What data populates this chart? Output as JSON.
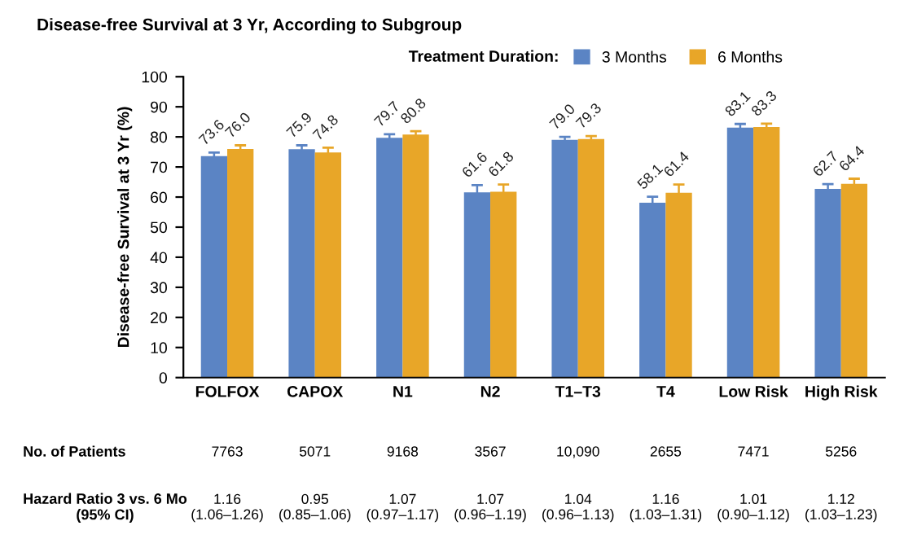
{
  "chart_data": {
    "type": "bar",
    "title": "Disease-free Survival at 3 Yr, According to Subgroup",
    "ylabel": "Disease-free Survival at 3 Yr (%)",
    "legend_title": "Treatment Duration:",
    "legend": "top right",
    "categories": [
      "FOLFOX",
      "CAPOX",
      "N1",
      "N2",
      "T1–T3",
      "T4",
      "Low Risk",
      "High Risk"
    ],
    "series": [
      {
        "name": "3 Months",
        "color": "#5b84c4",
        "values": [
          73.6,
          75.9,
          79.7,
          61.6,
          79.0,
          58.1,
          83.1,
          62.7
        ],
        "value_labels": [
          "73.6",
          "75.9",
          "79.7",
          "61.6",
          "79.0",
          "58.1",
          "83.1",
          "62.7"
        ],
        "errors": [
          1.2,
          1.3,
          1.2,
          2.4,
          1.0,
          2.0,
          1.2,
          1.6
        ]
      },
      {
        "name": "6 Months",
        "color": "#e8a628",
        "values": [
          76.0,
          74.8,
          80.8,
          61.8,
          79.3,
          61.4,
          83.3,
          64.4
        ],
        "value_labels": [
          "76.0",
          "74.8",
          "80.8",
          "61.8",
          "79.3",
          "61.4",
          "83.3",
          "64.4"
        ],
        "errors": [
          1.2,
          1.6,
          1.1,
          2.4,
          1.0,
          2.8,
          1.1,
          1.7
        ]
      }
    ],
    "ylim": [
      0,
      100
    ],
    "yticks": [
      0,
      10,
      20,
      30,
      40,
      50,
      60,
      70,
      80,
      90,
      100
    ],
    "grid": false,
    "annotations": [
      "No. of Patients",
      "7763",
      "5071",
      "9168",
      "3567",
      "10,090",
      "2655",
      "7471",
      "5256",
      "Hazard Ratio 3 vs. 6 Mo\n(95% CI)",
      "1.16\n(1.06–1.26)",
      "0.95\n(0.85–1.06)",
      "1.07\n(0.97–1.17)",
      "1.07\n(0.96–1.19)",
      "1.04\n(0.96–1.13)",
      "1.16\n(1.03–1.31)",
      "1.01\n(0.90–1.12)",
      "1.12\n(1.03–1.23)"
    ]
  }
}
